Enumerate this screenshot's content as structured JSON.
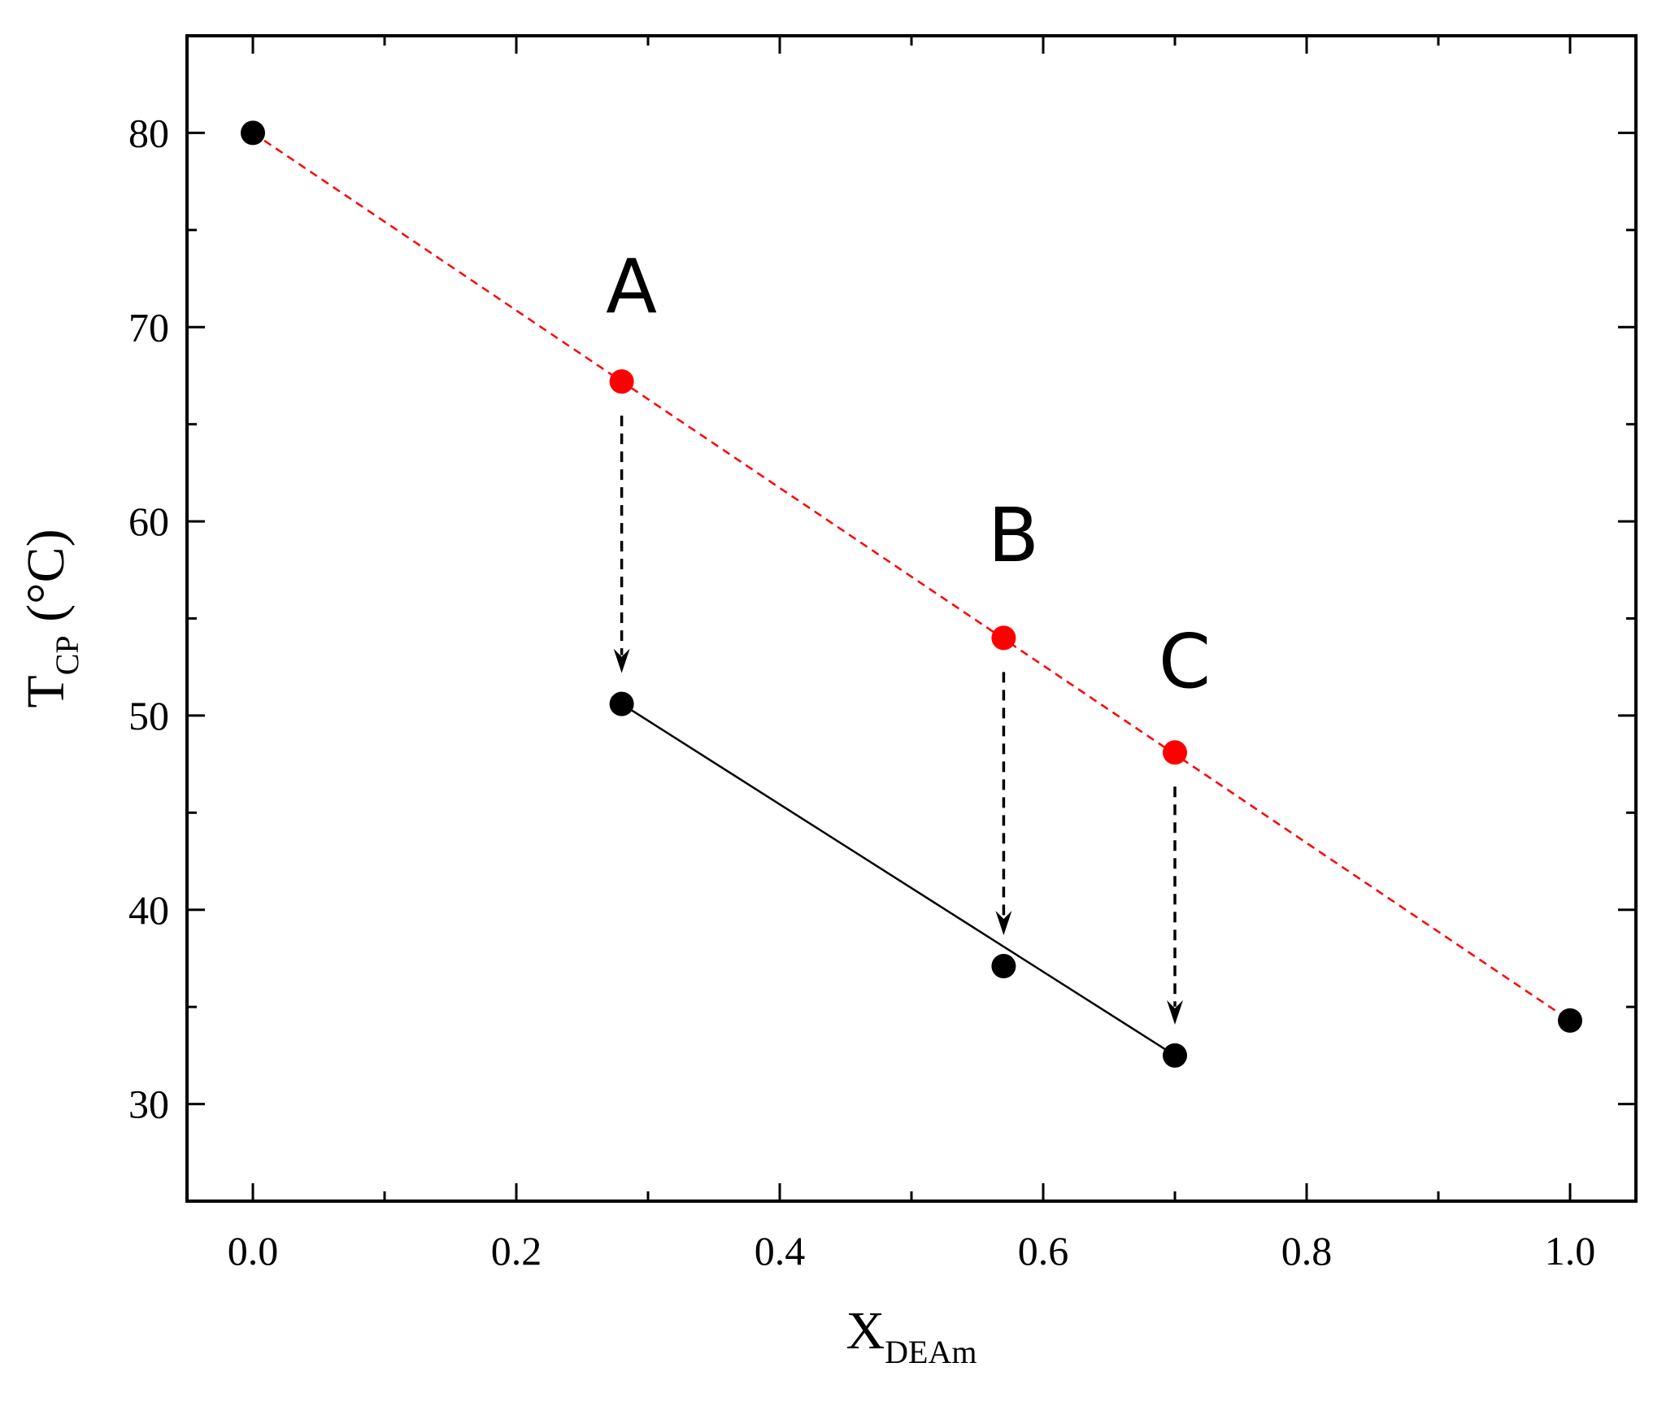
{
  "chart_data": {
    "type": "scatter",
    "title": "",
    "xlabel": {
      "main": "X",
      "sub": "DEAm"
    },
    "ylabel": {
      "main": "T",
      "sub": "CP",
      "unit": " (°C)"
    },
    "xlim": [
      -0.05,
      1.05
    ],
    "ylim": [
      25,
      85
    ],
    "xticks": [
      0.0,
      0.2,
      0.4,
      0.6,
      0.8,
      1.0
    ],
    "xtick_labels": [
      "0.0",
      "0.2",
      "0.4",
      "0.6",
      "0.8",
      "1.0"
    ],
    "xminor": [
      0.1,
      0.3,
      0.5,
      0.7,
      0.9
    ],
    "yticks": [
      30,
      40,
      50,
      60,
      70,
      80
    ],
    "ytick_labels": [
      "30",
      "40",
      "50",
      "60",
      "70",
      "80"
    ],
    "yminor": [
      35,
      45,
      55,
      65,
      75
    ],
    "grid": false,
    "legend": "none",
    "series": [
      {
        "style": "black-markers",
        "color": "#000000",
        "x": [
          0.0,
          0.28,
          0.57,
          0.7,
          1.0
        ],
        "y": [
          80.0,
          50.6,
          37.1,
          32.5,
          34.3
        ]
      },
      {
        "style": "red-markers",
        "color": "#ff0000",
        "x": [
          0.28,
          0.57,
          0.7
        ],
        "y": [
          67.2,
          54.0,
          48.1
        ]
      }
    ],
    "lines": [
      {
        "style": "red-dashed",
        "color": "#ff0000",
        "x": [
          0.0,
          1.0
        ],
        "y": [
          80.0,
          34.3
        ]
      },
      {
        "style": "black-solid",
        "color": "#000000",
        "x": [
          0.28,
          0.7
        ],
        "y": [
          50.6,
          32.5
        ]
      }
    ],
    "arrows": [
      {
        "x": 0.28,
        "y_from": 67.2,
        "y_to": 50.6
      },
      {
        "x": 0.57,
        "y_from": 54.0,
        "y_to": 37.1
      },
      {
        "x": 0.7,
        "y_from": 48.1,
        "y_to": 32.5
      }
    ],
    "annotations": [
      {
        "text": "A",
        "x": 0.28,
        "y": 72.1
      },
      {
        "text": "B",
        "x": 0.57,
        "y": 59.3
      },
      {
        "text": "C",
        "x": 0.7,
        "y": 52.8
      }
    ]
  }
}
